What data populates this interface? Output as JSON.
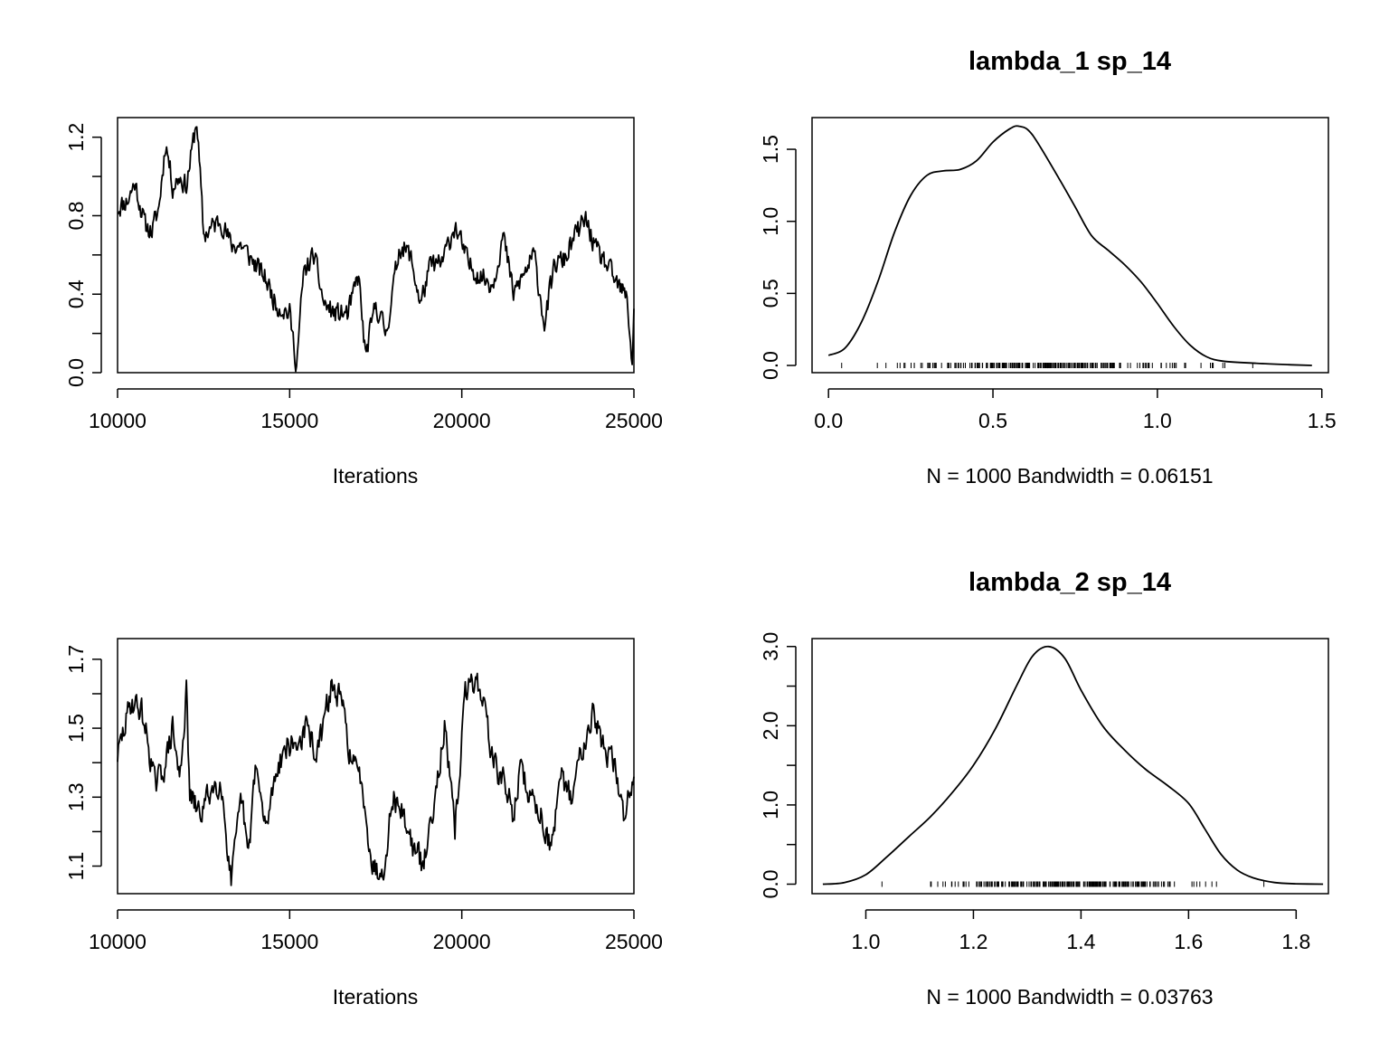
{
  "chart_data": [
    {
      "id": "trace1",
      "type": "line",
      "title": "",
      "xlabel": "Iterations",
      "ylabel": "",
      "xlim": [
        10000,
        25000
      ],
      "ylim": [
        0.0,
        1.3
      ],
      "xticks": [
        10000,
        15000,
        20000,
        25000
      ],
      "xtick_labels": [
        "10000",
        "15000",
        "20000",
        "25000"
      ],
      "yticks": [
        0.0,
        0.2,
        0.4,
        0.6,
        0.8,
        1.0,
        1.2
      ],
      "ytick_labels": [
        "0.0",
        "",
        "0.4",
        "",
        "0.8",
        "",
        "1.2"
      ],
      "anchors": [
        [
          10000,
          0.84
        ],
        [
          10300,
          0.88
        ],
        [
          10500,
          0.97
        ],
        [
          10800,
          0.75
        ],
        [
          11000,
          0.72
        ],
        [
          11200,
          0.84
        ],
        [
          11400,
          1.18
        ],
        [
          11600,
          0.95
        ],
        [
          11800,
          1.0
        ],
        [
          12000,
          0.95
        ],
        [
          12300,
          1.29
        ],
        [
          12500,
          0.7
        ],
        [
          12800,
          0.75
        ],
        [
          13000,
          0.78
        ],
        [
          13300,
          0.65
        ],
        [
          13600,
          0.65
        ],
        [
          14000,
          0.55
        ],
        [
          14300,
          0.48
        ],
        [
          14600,
          0.35
        ],
        [
          15000,
          0.3
        ],
        [
          15200,
          0.04
        ],
        [
          15400,
          0.5
        ],
        [
          15700,
          0.6
        ],
        [
          16000,
          0.35
        ],
        [
          16300,
          0.3
        ],
        [
          16700,
          0.3
        ],
        [
          17000,
          0.5
        ],
        [
          17200,
          0.08
        ],
        [
          17500,
          0.35
        ],
        [
          17800,
          0.2
        ],
        [
          18200,
          0.65
        ],
        [
          18500,
          0.6
        ],
        [
          18800,
          0.35
        ],
        [
          19100,
          0.55
        ],
        [
          19400,
          0.55
        ],
        [
          19800,
          0.75
        ],
        [
          20200,
          0.55
        ],
        [
          20500,
          0.5
        ],
        [
          20900,
          0.45
        ],
        [
          21200,
          0.7
        ],
        [
          21500,
          0.4
        ],
        [
          21800,
          0.5
        ],
        [
          22100,
          0.6
        ],
        [
          22400,
          0.25
        ],
        [
          22700,
          0.55
        ],
        [
          23000,
          0.58
        ],
        [
          23300,
          0.7
        ],
        [
          23600,
          0.78
        ],
        [
          23900,
          0.62
        ],
        [
          24200,
          0.55
        ],
        [
          24500,
          0.45
        ],
        [
          24800,
          0.38
        ],
        [
          24950,
          0.05
        ],
        [
          25000,
          0.3
        ]
      ],
      "noise": 0.05,
      "seed": 11
    },
    {
      "id": "density1",
      "type": "area",
      "title": "lambda_1 sp_14",
      "xlabel": "N = 1000   Bandwidth = 0.06151",
      "ylabel": "",
      "xlim": [
        -0.05,
        1.52
      ],
      "ylim": [
        -0.05,
        1.72
      ],
      "xticks": [
        0.0,
        0.5,
        1.0,
        1.5
      ],
      "xtick_labels": [
        "0.0",
        "0.5",
        "1.0",
        "1.5"
      ],
      "yticks": [
        0.0,
        0.5,
        1.0,
        1.5
      ],
      "ytick_labels": [
        "0.0",
        "0.5",
        "1.0",
        "1.5"
      ],
      "x": [
        0.0,
        0.05,
        0.1,
        0.15,
        0.2,
        0.25,
        0.3,
        0.35,
        0.4,
        0.45,
        0.5,
        0.55,
        0.58,
        0.62,
        0.7,
        0.75,
        0.8,
        0.85,
        0.9,
        0.95,
        1.0,
        1.05,
        1.1,
        1.15,
        1.2,
        1.3,
        1.4,
        1.47
      ],
      "y": [
        0.07,
        0.12,
        0.3,
        0.58,
        0.92,
        1.18,
        1.32,
        1.35,
        1.36,
        1.42,
        1.55,
        1.64,
        1.66,
        1.6,
        1.3,
        1.1,
        0.9,
        0.8,
        0.7,
        0.58,
        0.43,
        0.27,
        0.14,
        0.06,
        0.03,
        0.015,
        0.005,
        0.0
      ],
      "rug": [
        0.04,
        1.29
      ],
      "seed": 3
    },
    {
      "id": "trace2",
      "type": "line",
      "title": "",
      "xlabel": "Iterations",
      "ylabel": "",
      "xlim": [
        10000,
        25000
      ],
      "ylim": [
        1.02,
        1.76
      ],
      "xticks": [
        10000,
        15000,
        20000,
        25000
      ],
      "xtick_labels": [
        "10000",
        "15000",
        "20000",
        "25000"
      ],
      "yticks": [
        1.1,
        1.2,
        1.3,
        1.4,
        1.5,
        1.6,
        1.7
      ],
      "ytick_labels": [
        "1.1",
        "",
        "1.3",
        "",
        "1.5",
        "",
        "1.7"
      ],
      "anchors": [
        [
          10000,
          1.42
        ],
        [
          10200,
          1.5
        ],
        [
          10400,
          1.58
        ],
        [
          10700,
          1.55
        ],
        [
          10900,
          1.45
        ],
        [
          11100,
          1.33
        ],
        [
          11400,
          1.4
        ],
        [
          11600,
          1.5
        ],
        [
          11800,
          1.35
        ],
        [
          12000,
          1.6
        ],
        [
          12100,
          1.3
        ],
        [
          12400,
          1.25
        ],
        [
          12700,
          1.32
        ],
        [
          13000,
          1.35
        ],
        [
          13300,
          1.05
        ],
        [
          13600,
          1.3
        ],
        [
          13800,
          1.12
        ],
        [
          14000,
          1.4
        ],
        [
          14300,
          1.2
        ],
        [
          14600,
          1.38
        ],
        [
          14900,
          1.45
        ],
        [
          15200,
          1.45
        ],
        [
          15500,
          1.5
        ],
        [
          15800,
          1.42
        ],
        [
          16200,
          1.62
        ],
        [
          16500,
          1.58
        ],
        [
          16800,
          1.4
        ],
        [
          17100,
          1.35
        ],
        [
          17400,
          1.1
        ],
        [
          17700,
          1.08
        ],
        [
          18000,
          1.3
        ],
        [
          18300,
          1.25
        ],
        [
          18600,
          1.15
        ],
        [
          18900,
          1.1
        ],
        [
          19200,
          1.3
        ],
        [
          19500,
          1.5
        ],
        [
          19800,
          1.2
        ],
        [
          20100,
          1.6
        ],
        [
          20400,
          1.65
        ],
        [
          20700,
          1.55
        ],
        [
          20900,
          1.4
        ],
        [
          21200,
          1.35
        ],
        [
          21500,
          1.25
        ],
        [
          21700,
          1.38
        ],
        [
          22000,
          1.3
        ],
        [
          22300,
          1.25
        ],
        [
          22600,
          1.15
        ],
        [
          22900,
          1.35
        ],
        [
          23200,
          1.3
        ],
        [
          23500,
          1.45
        ],
        [
          23800,
          1.55
        ],
        [
          24100,
          1.45
        ],
        [
          24400,
          1.4
        ],
        [
          24700,
          1.25
        ],
        [
          25000,
          1.36
        ]
      ],
      "noise": 0.035,
      "seed": 29
    },
    {
      "id": "density2",
      "type": "area",
      "title": "lambda_2 sp_14",
      "xlabel": "N = 1000   Bandwidth = 0.03763",
      "ylabel": "",
      "xlim": [
        0.9,
        1.86
      ],
      "ylim": [
        -0.12,
        3.1
      ],
      "xticks": [
        1.0,
        1.2,
        1.4,
        1.6,
        1.8
      ],
      "xtick_labels": [
        "1.0",
        "1.2",
        "1.4",
        "1.6",
        "1.8"
      ],
      "yticks": [
        0.0,
        0.5,
        1.0,
        1.5,
        2.0,
        2.5,
        3.0
      ],
      "ytick_labels": [
        "0.0",
        "",
        "1.0",
        "",
        "2.0",
        "",
        "3.0"
      ],
      "x": [
        0.92,
        0.96,
        1.0,
        1.04,
        1.08,
        1.12,
        1.16,
        1.2,
        1.24,
        1.28,
        1.31,
        1.34,
        1.37,
        1.4,
        1.44,
        1.48,
        1.52,
        1.56,
        1.6,
        1.63,
        1.66,
        1.69,
        1.72,
        1.76,
        1.8,
        1.85
      ],
      "y": [
        0.0,
        0.02,
        0.12,
        0.35,
        0.6,
        0.85,
        1.15,
        1.5,
        1.95,
        2.5,
        2.88,
        3.0,
        2.85,
        2.45,
        2.0,
        1.7,
        1.45,
        1.25,
        1.02,
        0.7,
        0.38,
        0.18,
        0.08,
        0.02,
        0.005,
        0.0
      ],
      "rug": [
        1.03,
        1.74
      ],
      "seed": 5
    }
  ]
}
